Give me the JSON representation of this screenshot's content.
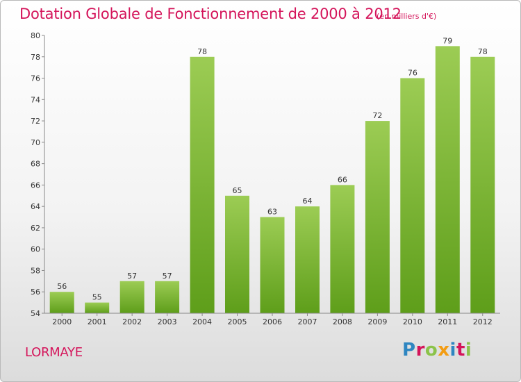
{
  "header": {
    "title": "Dotation Globale de Fonctionnement de 2000 à 2012",
    "subtitle": "(en milliers d'€)"
  },
  "footer": {
    "town": "LORMAYE",
    "brand": [
      "P",
      "r",
      "o",
      "x",
      "i",
      "t",
      "i"
    ],
    "brand_colors": [
      "#2e86c1",
      "#d4145a",
      "#8bc34a",
      "#f39c12",
      "#2e86c1",
      "#d4145a",
      "#8bc34a"
    ]
  },
  "colors": {
    "bar_top": "#9ccc54",
    "bar_bottom": "#5e9e1a",
    "text_accent": "#d4145a",
    "grid": "#cccccc"
  },
  "chart_data": {
    "type": "bar",
    "title": "Dotation Globale de Fonctionnement de 2000 à 2012",
    "subtitle": "(en milliers d'€)",
    "xlabel": "",
    "ylabel": "",
    "ylim": [
      54,
      80
    ],
    "yticks": [
      54,
      56,
      58,
      60,
      62,
      64,
      66,
      68,
      70,
      72,
      74,
      76,
      78,
      80
    ],
    "grid": false,
    "categories": [
      "2000",
      "2001",
      "2002",
      "2003",
      "2004",
      "2005",
      "2006",
      "2007",
      "2008",
      "2009",
      "2010",
      "2011",
      "2012"
    ],
    "values": [
      56,
      55,
      57,
      57,
      78,
      65,
      63,
      64,
      66,
      72,
      76,
      79,
      78
    ],
    "data_labels": true
  }
}
